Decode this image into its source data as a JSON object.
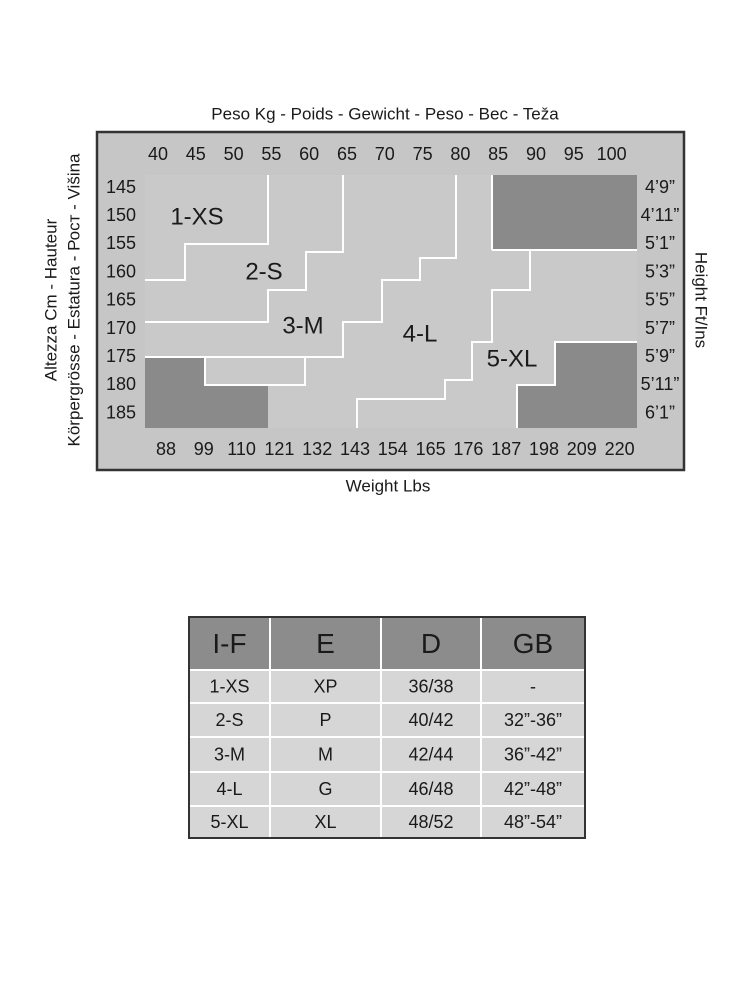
{
  "diagram": {
    "top_label": "Peso Kg - Poids - Gewicht - Peso - Bec - Teža",
    "left_label_1": "Altezza Cm - Hauteur",
    "left_label_2": "Körpergrösse - Estatura - Рост - Višina",
    "right_label": "Height Ft/Ins",
    "bottom_label": "Weight Lbs",
    "kg": [
      40,
      45,
      50,
      55,
      60,
      65,
      70,
      75,
      80,
      85,
      90,
      95,
      100
    ],
    "cm": [
      145,
      150,
      155,
      160,
      165,
      170,
      175,
      180,
      185
    ],
    "ft": [
      "4’9”",
      "4’11”",
      "5’1”",
      "5’3”",
      "5’5”",
      "5’7”",
      "5’9”",
      "5’11”",
      "6’1”"
    ],
    "lbs": [
      88,
      99,
      110,
      121,
      132,
      143,
      154,
      165,
      176,
      187,
      198,
      209,
      220
    ],
    "sizes": [
      "1-XS",
      "2-S",
      "3-M",
      "4-L",
      "5-XL"
    ]
  },
  "table": {
    "header": [
      "I-F",
      "E",
      "D",
      "GB"
    ],
    "rows": [
      [
        "1-XS",
        "XP",
        "36/38",
        "-"
      ],
      [
        "2-S",
        "P",
        "40/42",
        "32”-36”"
      ],
      [
        "3-M",
        "M",
        "42/44",
        "36”-42”"
      ],
      [
        "4-L",
        "G",
        "46/48",
        "42”-48”"
      ],
      [
        "5-XL",
        "XL",
        "48/52",
        "48”-54”"
      ]
    ]
  }
}
